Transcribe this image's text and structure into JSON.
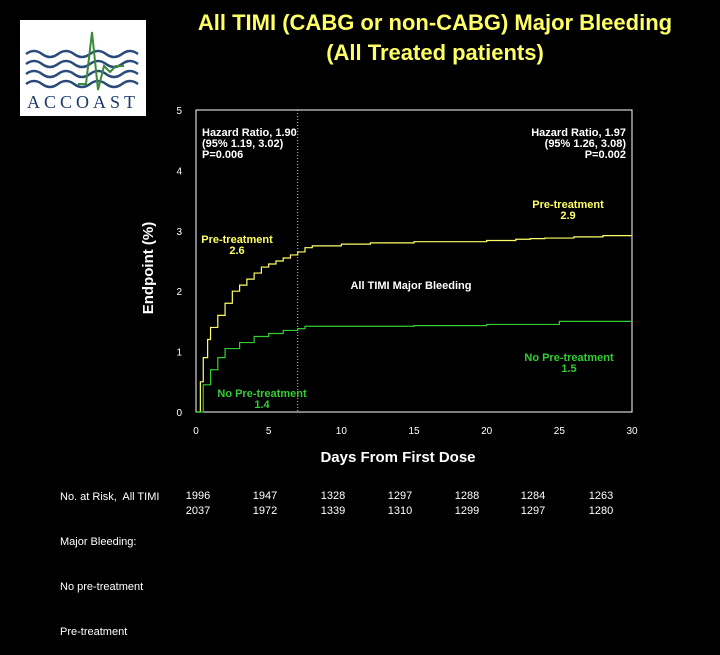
{
  "slide": {
    "title_line1": "All TIMI (CABG or non-CABG) Major Bleeding",
    "title_line2": "(All Treated patients)",
    "logo_text": "ACCOAST"
  },
  "chart_data": {
    "type": "line",
    "xlabel": "Days From First Dose",
    "ylabel": "Endpoint (%)",
    "xlim": [
      0,
      30
    ],
    "ylim": [
      0,
      5
    ],
    "x_ticks": [
      0,
      5,
      10,
      15,
      20,
      25,
      30
    ],
    "y_ticks": [
      0,
      1,
      2,
      3,
      4,
      5
    ],
    "reference_line_x": 7,
    "series": [
      {
        "name": "Pre-treatment",
        "color": "#ffff66",
        "x": [
          0,
          0.3,
          0.5,
          0.8,
          1,
          1.5,
          2,
          2.5,
          3,
          3.5,
          4,
          4.5,
          5,
          5.5,
          6,
          6.5,
          7,
          7.5,
          8,
          10,
          12,
          15,
          20,
          22,
          23,
          24,
          26,
          28,
          30
        ],
        "y": [
          0,
          0.5,
          0.9,
          1.2,
          1.4,
          1.6,
          1.8,
          2.0,
          2.1,
          2.2,
          2.3,
          2.4,
          2.45,
          2.5,
          2.55,
          2.6,
          2.65,
          2.72,
          2.75,
          2.78,
          2.8,
          2.82,
          2.84,
          2.86,
          2.87,
          2.88,
          2.9,
          2.92,
          2.92
        ]
      },
      {
        "name": "No Pre-treatment",
        "color": "#33cc33",
        "x": [
          0,
          0.5,
          1,
          1.5,
          2,
          3,
          4,
          5,
          6,
          7,
          7.5,
          10,
          15,
          20,
          25,
          30
        ],
        "y": [
          0,
          0.45,
          0.7,
          0.9,
          1.05,
          1.15,
          1.25,
          1.3,
          1.35,
          1.38,
          1.42,
          1.42,
          1.43,
          1.45,
          1.5,
          1.5
        ]
      }
    ],
    "annotations": {
      "hr_left": [
        "Hazard Ratio, 1.90",
        "(95% 1.19, 3.02)",
        "P=0.006"
      ],
      "hr_right": [
        "Hazard Ratio, 1.97",
        "(95% 1.26, 3.08)",
        "P=0.002"
      ],
      "pre_left": [
        "Pre-treatment",
        "2.6"
      ],
      "pre_right": [
        "Pre-treatment",
        "2.9"
      ],
      "center": "All TIMI Major Bleeding",
      "nopre_left": [
        "No Pre-treatment",
        "1.4"
      ],
      "nopre_right": [
        "No Pre-treatment",
        "1.5"
      ]
    }
  },
  "at_risk": {
    "label_lines": [
      "No. at Risk,  All TIMI",
      "Major Bleeding:",
      "No pre-treatment",
      "Pre-treatment"
    ],
    "no_pretreatment": [
      "1996",
      "1947",
      "1328",
      "1297",
      "1288",
      "1284",
      "1263"
    ],
    "pretreatment": [
      "2037",
      "1972",
      "1339",
      "1310",
      "1299",
      "1297",
      "1280"
    ]
  }
}
